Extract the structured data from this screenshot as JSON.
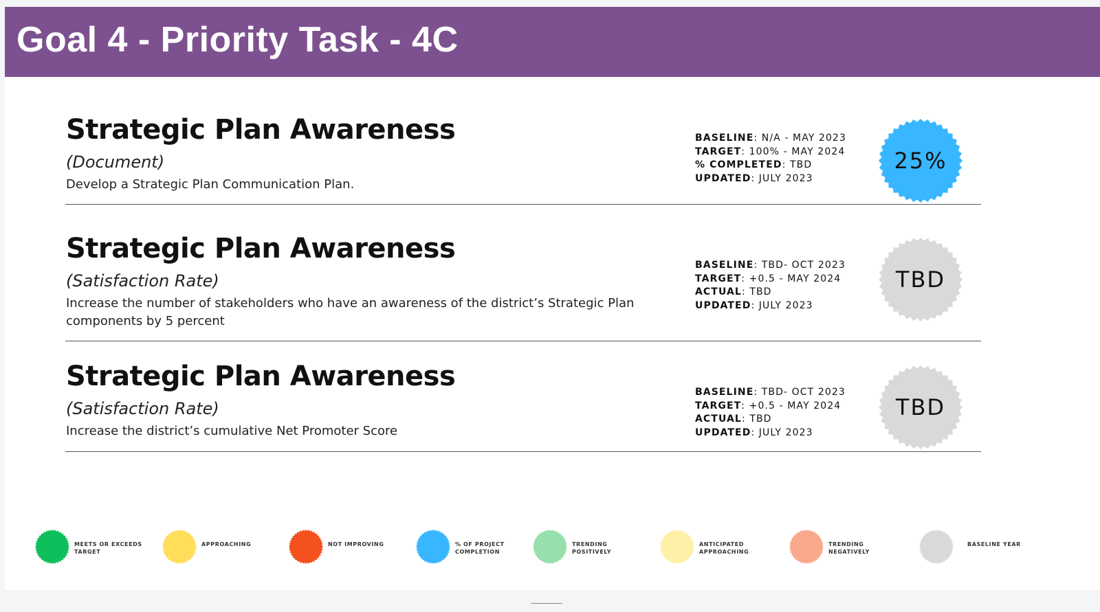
{
  "header": {
    "title": "Goal 4 - Priority Task - 4C"
  },
  "metrics": [
    {
      "title": "Strategic Plan Awareness",
      "subtitle": "(Document)",
      "description": "Develop a Strategic Plan Communication Plan.",
      "stats": [
        {
          "label": "BASELINE",
          "value": ": N/A - MAY 2023"
        },
        {
          "label": "TARGET",
          "value": ": 100% - MAY 2024"
        },
        {
          "label": "% COMPLETED",
          "value": ": TBD"
        },
        {
          "label": "UPDATED",
          "value": ": JULY 2023"
        }
      ],
      "badge": {
        "text": "25%",
        "color": "#38b6ff"
      }
    },
    {
      "title": "Strategic Plan Awareness",
      "subtitle": "(Satisfaction Rate)",
      "description": "Increase the number of stakeholders who have an awareness of the district’s Strategic Plan components by 5 percent",
      "stats": [
        {
          "label": "BASELINE",
          "value": ": TBD- OCT 2023"
        },
        {
          "label": "TARGET",
          "value": ": +0.5 - MAY 2024"
        },
        {
          "label": "ACTUAL",
          "value": ": TBD"
        },
        {
          "label": "UPDATED",
          "value": ": JULY 2023"
        }
      ],
      "badge": {
        "text": "TBD",
        "color": "#d9d9d9"
      }
    },
    {
      "title": "Strategic Plan Awareness",
      "subtitle": "(Satisfaction Rate)",
      "description": "Increase the district’s cumulative Net Promoter Score",
      "stats": [
        {
          "label": "BASELINE",
          "value": ": TBD- OCT 2023"
        },
        {
          "label": "TARGET",
          "value": ": +0.5 - MAY 2024"
        },
        {
          "label": "ACTUAL",
          "value": ": TBD"
        },
        {
          "label": "UPDATED",
          "value": ": JULY 2023"
        }
      ],
      "badge": {
        "text": "TBD",
        "color": "#d9d9d9"
      }
    }
  ],
  "legend": [
    {
      "label": "MEETS OR EXCEEDS TARGET",
      "color": "#0fbf5c"
    },
    {
      "label": "APPROACHING",
      "color": "#ffde59"
    },
    {
      "label": "NOT IMPROVING",
      "color": "#f4511e"
    },
    {
      "label": "% OF PROJECT COMPLETION",
      "color": "#38b6ff"
    },
    {
      "label": "TRENDING POSITIVELY",
      "color": "#97dfac"
    },
    {
      "label": "ANTICIPATED APPROACHING",
      "color": "#fff0a8"
    },
    {
      "label": "TRENDING NEGATIVELY",
      "color": "#f9a98b"
    },
    {
      "label": "BASELINE YEAR",
      "color": "#d9d9d9"
    }
  ]
}
